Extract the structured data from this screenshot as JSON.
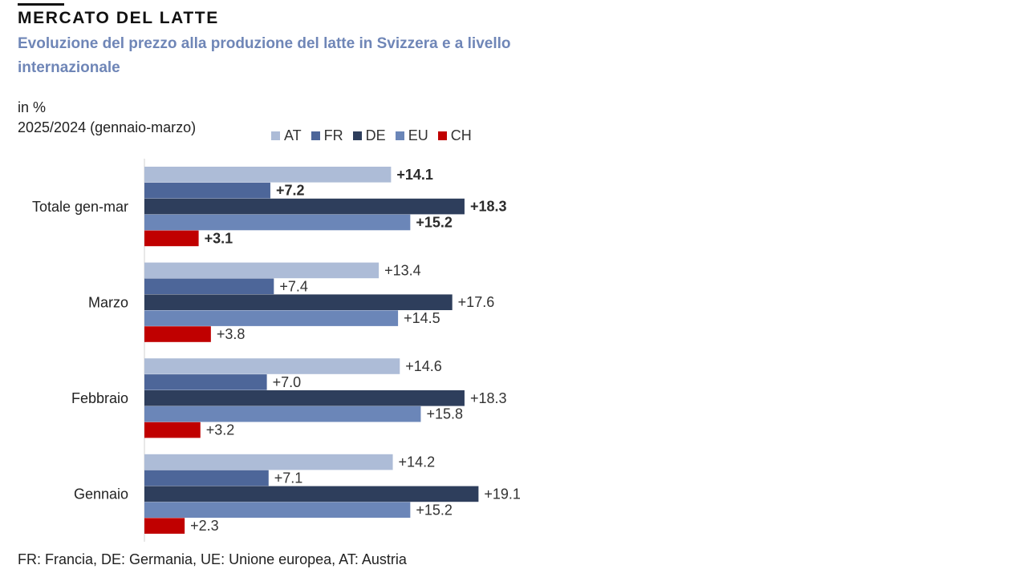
{
  "header": {
    "kicker": "MERCATO DEL LATTE",
    "subtitle": "Evoluzione del prezzo alla produzione del latte in Svizzera e a livello internazionale",
    "unit_line1": "in %",
    "unit_line2": "2025/2024 (gennaio-marzo)"
  },
  "footnote": "FR: Francia, DE: Germania, UE: Unione europea, AT: Austria",
  "colors": {
    "AT": "#adbcd7",
    "FR": "#4d6699",
    "DE": "#2e3e5c",
    "EU": "#6b86b8",
    "CH": "#c00000"
  },
  "chart_data": {
    "type": "bar",
    "orientation": "horizontal",
    "categories": [
      "Totale gen-mar",
      "Marzo",
      "Febbraio",
      "Gennaio"
    ],
    "series": [
      {
        "name": "AT",
        "values": [
          14.1,
          13.4,
          14.6,
          14.2
        ],
        "labels": [
          "+14.1",
          "+13.4",
          "+14.6",
          "+14.2"
        ]
      },
      {
        "name": "FR",
        "values": [
          7.2,
          7.4,
          7.0,
          7.1
        ],
        "labels": [
          "+7.2",
          "+7.4",
          "+7.0",
          "+7.1"
        ]
      },
      {
        "name": "DE",
        "values": [
          18.3,
          17.6,
          18.3,
          19.1
        ],
        "labels": [
          "+18.3",
          "+17.6",
          "+18.3",
          "+19.1"
        ]
      },
      {
        "name": "EU",
        "values": [
          15.2,
          14.5,
          15.8,
          15.2
        ],
        "labels": [
          "+15.2",
          "+14.5",
          "+15.8",
          "+15.2"
        ]
      },
      {
        "name": "CH",
        "values": [
          3.1,
          3.8,
          3.2,
          2.3
        ],
        "labels": [
          "+3.1",
          "+3.8",
          "+3.2",
          "+2.3"
        ]
      }
    ],
    "bold_labels_category": "Totale gen-mar",
    "xlim": [
      0,
      20
    ],
    "grid": false,
    "legend_position": "top"
  }
}
